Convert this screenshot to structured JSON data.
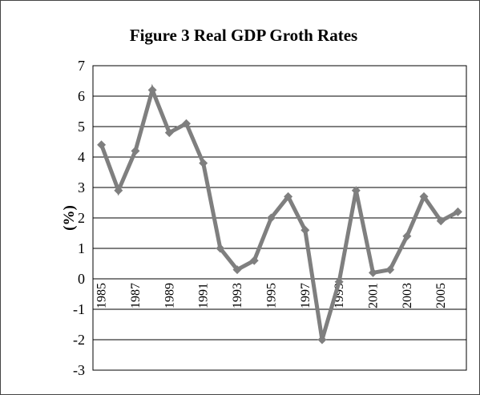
{
  "chart_data": {
    "type": "line",
    "title": "Figure 3 Real GDP Groth Rates",
    "xlabel": "",
    "ylabel": "(%)",
    "ylim": [
      -3,
      7
    ],
    "yticks": [
      7,
      6,
      5,
      4,
      3,
      2,
      1,
      0,
      -1,
      -2,
      -3
    ],
    "grid": true,
    "legend": "none",
    "x": [
      1985,
      1986,
      1987,
      1988,
      1989,
      1990,
      1991,
      1992,
      1993,
      1994,
      1995,
      1996,
      1997,
      1998,
      1999,
      2000,
      2001,
      2002,
      2003,
      2004,
      2005,
      2006
    ],
    "xtick_labels": [
      "1985",
      "1987",
      "1989",
      "1991",
      "1993",
      "1995",
      "1997",
      "1999",
      "2001",
      "2003",
      "2005"
    ],
    "series": [
      {
        "values": [
          4.4,
          2.9,
          4.2,
          6.2,
          4.8,
          5.1,
          3.8,
          1.0,
          0.3,
          0.6,
          2.0,
          2.7,
          1.6,
          -2.0,
          -0.1,
          2.9,
          0.2,
          0.3,
          1.4,
          2.7,
          1.9,
          2.2
        ],
        "color": "#7f7f7f"
      }
    ]
  }
}
